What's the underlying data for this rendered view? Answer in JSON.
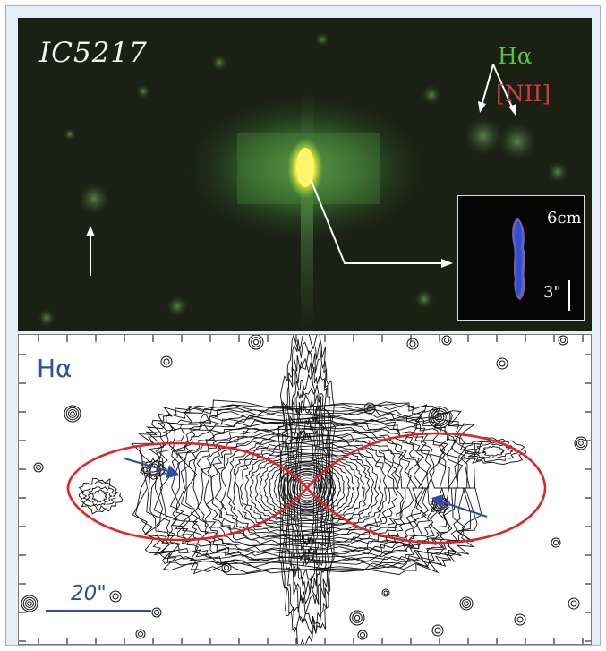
{
  "top_panel": {
    "object_name": "IC5217",
    "filter_halpha": "Hα",
    "filter_nii": "[NII]",
    "inset_frequency": "6cm",
    "inset_scale": "3\""
  },
  "bottom_panel": {
    "filter_label": "Hα",
    "scale_bar_label": "20\""
  },
  "colors": {
    "halpha_green": "#56c24a",
    "nii_red": "#d43b3b",
    "annotation_blue": "#2c4fa3",
    "lobe_red": "#e02424"
  }
}
